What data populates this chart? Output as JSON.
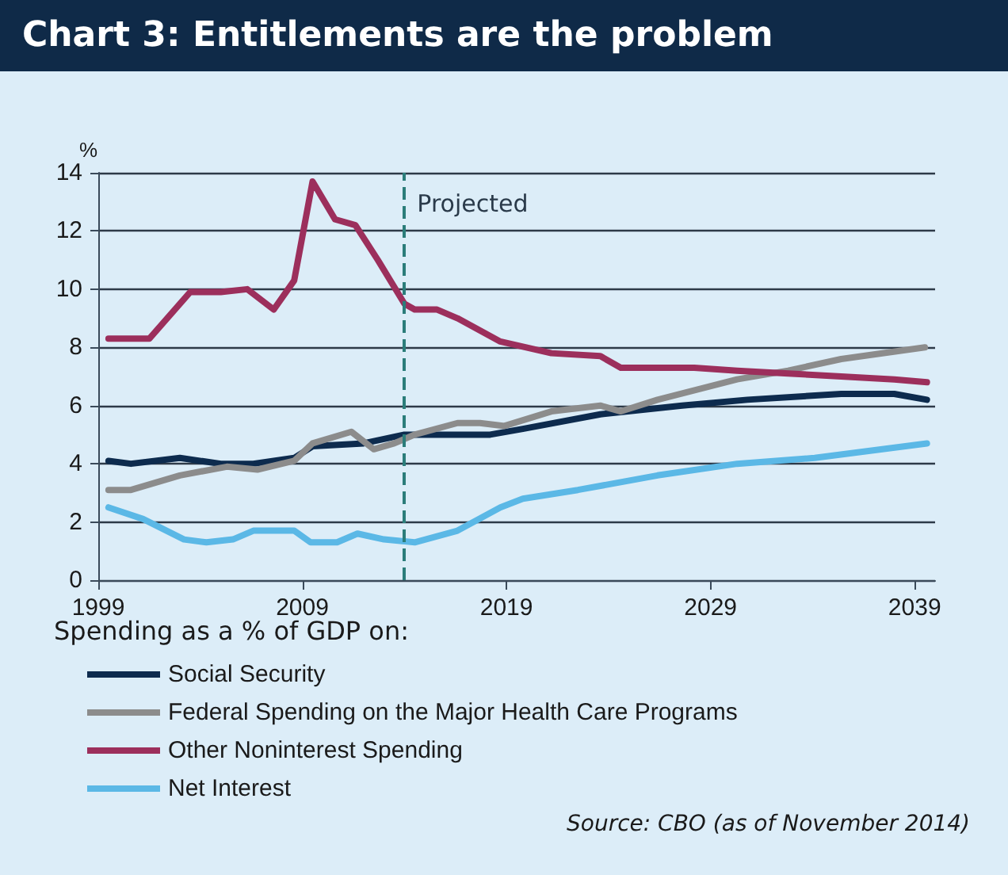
{
  "chart_data": {
    "type": "line",
    "title": "Chart 3: Entitlements are the problem",
    "ylabel": "%",
    "legend_title": "Spending as a % of GDP on:",
    "annotations": [
      "Source: CBO (as of November 2014)"
    ],
    "xlim": [
      1999,
      2040
    ],
    "xticks": [
      1999,
      2009,
      2019,
      2029,
      2039
    ],
    "ylim": [
      0,
      14
    ],
    "yticks": [
      0,
      2,
      4,
      6,
      8,
      10,
      12,
      14
    ],
    "grid": "y",
    "legend": "bottom",
    "ref_lines": [
      {
        "axis": "x",
        "value": 2014,
        "label": "Projected",
        "color": "#2b7d7a",
        "line_style": "dashed"
      }
    ],
    "series": [
      {
        "name": "Social Security",
        "color": "#0d2b4e",
        "x": [
          1999.5,
          2000.6,
          2003,
          2005,
          2006.6,
          2008.6,
          2009.5,
          2012,
          2014,
          2016,
          2018.2,
          2019.8,
          2023.6,
          2027.6,
          2030.8,
          2035.4,
          2038,
          2039.6
        ],
        "values": [
          4.1,
          4.0,
          4.2,
          4.0,
          4.0,
          4.2,
          4.6,
          4.7,
          5.0,
          5.0,
          5.0,
          5.2,
          5.7,
          6.0,
          6.2,
          6.4,
          6.4,
          6.2
        ]
      },
      {
        "name": "Federal Spending on the Major Health Care Programs",
        "color": "#8c8c8c",
        "x": [
          1999.5,
          2000.6,
          2003,
          2005.3,
          2006.8,
          2008.6,
          2009.5,
          2011.4,
          2012.5,
          2013.5,
          2014.5,
          2016.6,
          2017.7,
          2018.9,
          2021.2,
          2023.6,
          2024.6,
          2026.4,
          2030.3,
          2032.8,
          2035.4,
          2039.5
        ],
        "values": [
          3.1,
          3.1,
          3.6,
          3.9,
          3.8,
          4.1,
          4.7,
          5.1,
          4.5,
          4.7,
          5.0,
          5.4,
          5.4,
          5.3,
          5.8,
          6.0,
          5.8,
          6.2,
          6.9,
          7.2,
          7.6,
          8.0
        ]
      },
      {
        "name": "Other Noninterest Spending",
        "color": "#9c2f5c",
        "x": [
          1999.5,
          2001.5,
          2003.5,
          2005,
          2006.3,
          2007.6,
          2008.6,
          2009.5,
          2010.6,
          2011.6,
          2012.7,
          2014,
          2014.5,
          2015.6,
          2016.6,
          2018.7,
          2021.2,
          2023.6,
          2024.6,
          2028.2,
          2030.3,
          2032.8,
          2035.4,
          2038,
          2039.6
        ],
        "values": [
          8.3,
          8.3,
          9.9,
          9.9,
          10.0,
          9.3,
          10.3,
          13.7,
          12.4,
          12.2,
          11.0,
          9.5,
          9.3,
          9.3,
          9.0,
          8.2,
          7.8,
          7.7,
          7.3,
          7.3,
          7.2,
          7.1,
          7.0,
          6.9,
          6.8
        ]
      },
      {
        "name": "Net Interest",
        "color": "#5bb8e6",
        "x": [
          1999.5,
          2001.2,
          2003.2,
          2004.3,
          2005.6,
          2006.6,
          2008.6,
          2009.4,
          2010.7,
          2011.7,
          2013,
          2014.5,
          2016.6,
          2018.7,
          2019.8,
          2022.5,
          2026.4,
          2030.3,
          2034.1,
          2039.6
        ],
        "values": [
          2.5,
          2.1,
          1.4,
          1.3,
          1.4,
          1.7,
          1.7,
          1.3,
          1.3,
          1.6,
          1.4,
          1.3,
          1.7,
          2.5,
          2.8,
          3.1,
          3.6,
          4.0,
          4.2,
          4.7
        ]
      }
    ]
  }
}
